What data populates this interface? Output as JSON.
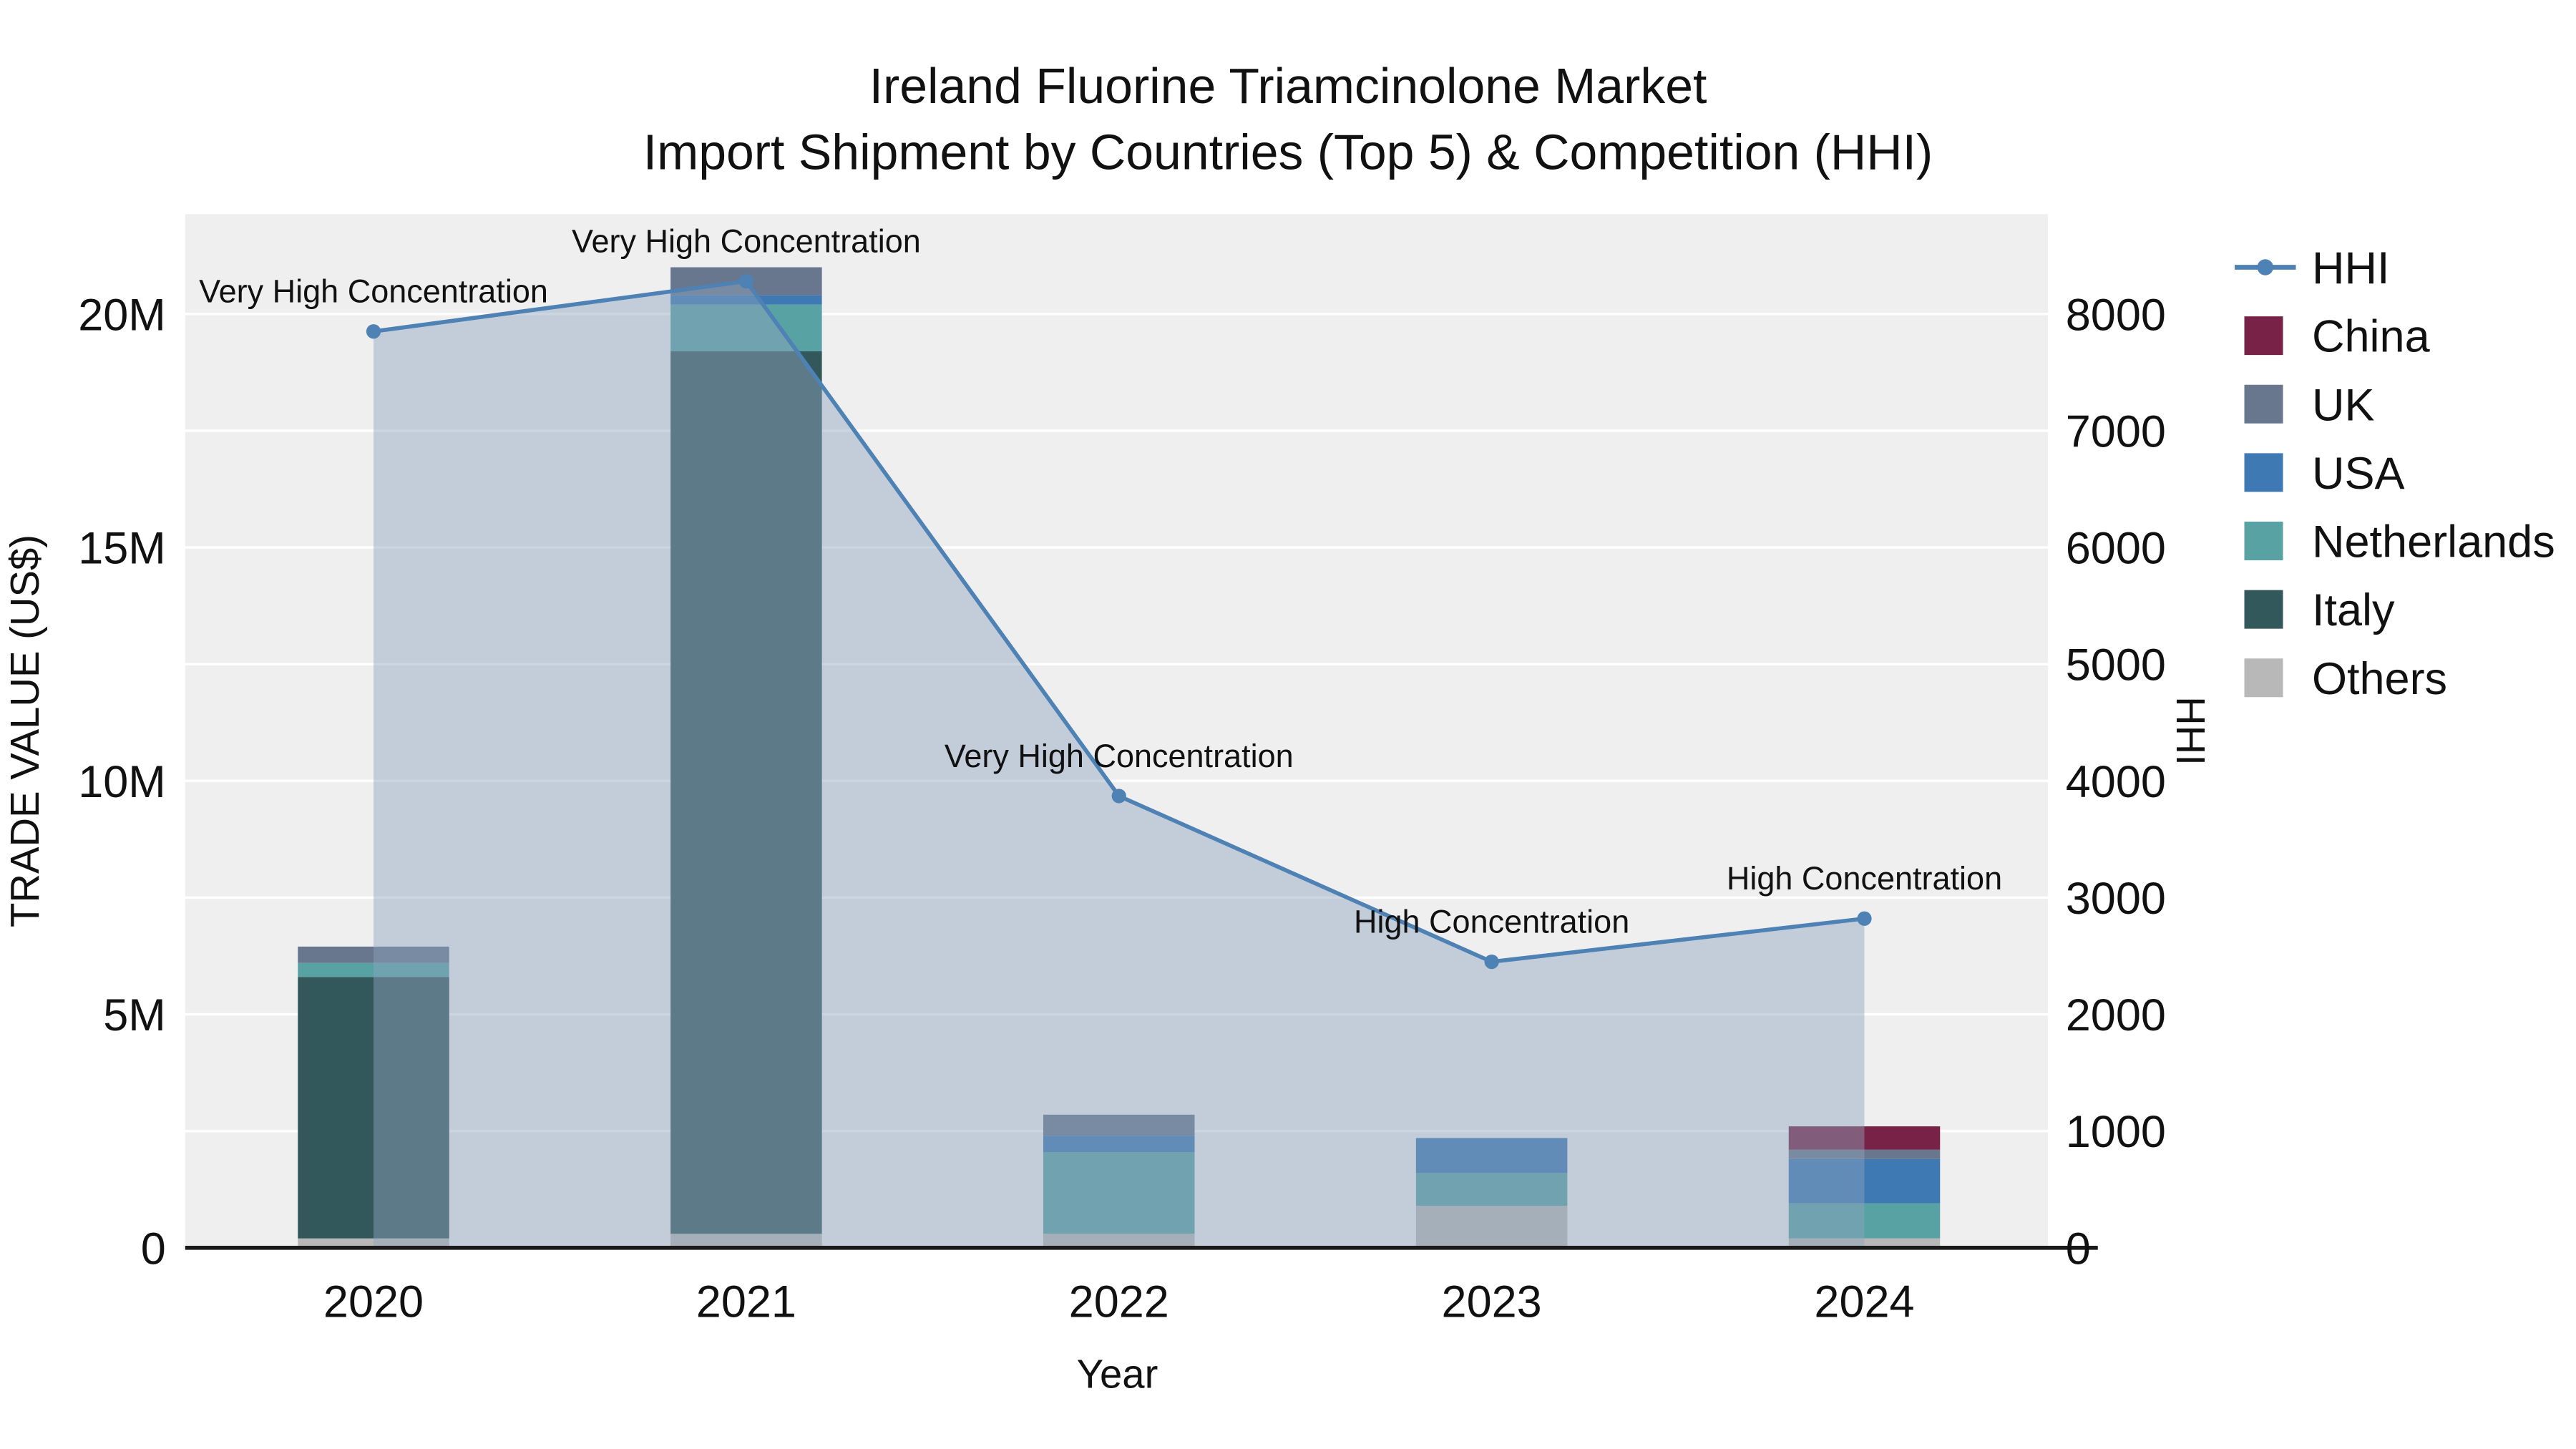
{
  "chart_data": {
    "type": "bar",
    "variant": "stacked-bars-with-line-area-overlay",
    "title": "Ireland Fluorine Triamcinolone Market",
    "subtitle": "Import Shipment by Countries (Top 5) & Competition (HHI)",
    "xlabel": "Year",
    "ylabel_left": "TRADE VALUE (US$)",
    "ylabel_right": "HHI",
    "categories": [
      "2020",
      "2021",
      "2022",
      "2023",
      "2024"
    ],
    "bar_unit": "US$ millions",
    "bar_series": [
      {
        "name": "Others",
        "color": "#b8b8b8",
        "values": [
          0.2,
          0.3,
          0.3,
          0.9,
          0.2
        ]
      },
      {
        "name": "Italy",
        "color": "#33585b",
        "values": [
          5.6,
          18.9,
          0,
          0,
          0
        ]
      },
      {
        "name": "Netherlands",
        "color": "#58a2a4",
        "values": [
          0.3,
          1.0,
          1.75,
          0.7,
          0.75
        ]
      },
      {
        "name": "USA",
        "color": "#3e79b4",
        "values": [
          0,
          0.2,
          0.35,
          0.75,
          0.95
        ]
      },
      {
        "name": "UK",
        "color": "#68778e",
        "values": [
          0.35,
          0.6,
          0.45,
          0,
          0.2
        ]
      },
      {
        "name": "China",
        "color": "#772246",
        "values": [
          0,
          0,
          0,
          0,
          0.5
        ]
      }
    ],
    "bar_totals_millions": [
      6.45,
      21.0,
      2.85,
      2.35,
      2.6
    ],
    "line_series": {
      "name": "HHI",
      "color": "#4e82b4",
      "area_color": "#8fa3bd",
      "values": [
        7850,
        8280,
        3870,
        2450,
        2820
      ]
    },
    "annotations": [
      {
        "x": "2020",
        "text": "Very High Concentration"
      },
      {
        "x": "2021",
        "text": "Very High Concentration"
      },
      {
        "x": "2022",
        "text": "Very High Concentration"
      },
      {
        "x": "2023",
        "text": "High Concentration"
      },
      {
        "x": "2024",
        "text": "High Concentration"
      }
    ],
    "left_axis": {
      "ticks": [
        "0",
        "5M",
        "10M",
        "15M",
        "20M"
      ],
      "tick_values_millions": [
        0,
        5,
        10,
        15,
        20
      ]
    },
    "right_axis": {
      "ticks": [
        "0",
        "1000",
        "2000",
        "3000",
        "4000",
        "5000",
        "6000",
        "7000",
        "8000"
      ],
      "tick_values": [
        0,
        1000,
        2000,
        3000,
        4000,
        5000,
        6000,
        7000,
        8000
      ]
    },
    "legend": {
      "order": [
        "HHI",
        "China",
        "UK",
        "USA",
        "Netherlands",
        "Italy",
        "Others"
      ]
    },
    "style": {
      "plot_background": "#efeff0",
      "gridline_color": "#ffffff",
      "axis_line_color": "#1a1a1a"
    }
  }
}
